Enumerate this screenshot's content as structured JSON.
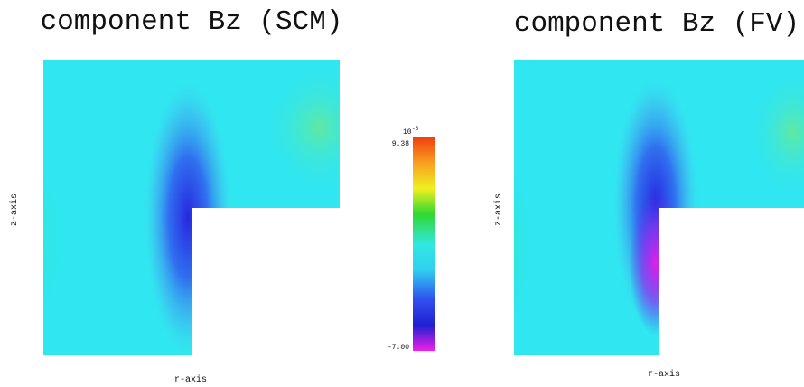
{
  "panels": [
    {
      "title": "component Bz (SCM)",
      "xlabel": "r-axis",
      "ylabel": "z-axis"
    },
    {
      "title": "component Bz (FV)",
      "xlabel": "r-axis",
      "ylabel": "z-axis"
    }
  ],
  "colorbar": {
    "scale_base": "10",
    "scale_exponent": "-6",
    "max_label": "9.38",
    "min_label": "-7.00"
  }
}
